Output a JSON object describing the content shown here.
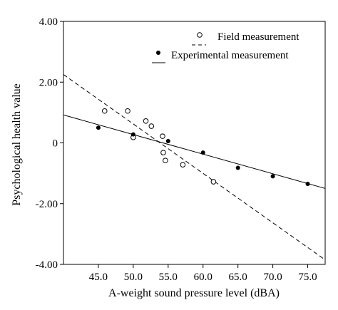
{
  "chart_data": {
    "type": "scatter",
    "xlabel": "A-weight sound pressure level (dBA)",
    "ylabel": "Psychological health value",
    "xlim": [
      40.0,
      77.5
    ],
    "ylim": [
      -4.0,
      4.0
    ],
    "x_ticks": [
      45,
      50,
      55,
      60,
      65,
      70,
      75
    ],
    "x_tick_labels": [
      "45.0",
      "50.0",
      "55.0",
      "60.0",
      "65.0",
      "70.0",
      "75.0"
    ],
    "y_ticks": [
      4,
      2,
      0,
      -2,
      -4
    ],
    "y_tick_labels": [
      "4.00",
      "2.00",
      "0",
      "-2.00",
      "-4.00"
    ],
    "grid": false,
    "legend_position": "top-right",
    "legend": [
      {
        "marker_label": "Field measurement",
        "line_label": ""
      },
      {
        "marker_label": "Experimental measurement",
        "line_label": ""
      }
    ],
    "series": [
      {
        "marker": "open-circle",
        "x": [
          45.9,
          49.2,
          50.0,
          51.8,
          52.6,
          54.2,
          54.3,
          54.6,
          57.1,
          61.5
        ],
        "y": [
          1.05,
          1.05,
          0.18,
          0.72,
          0.55,
          0.22,
          -0.32,
          -0.58,
          -0.72,
          -1.28
        ],
        "fit": {
          "style": "dashed",
          "x": [
            40.0,
            77.5
          ],
          "y": [
            2.25,
            -3.85
          ]
        }
      },
      {
        "marker": "filled-circle",
        "x": [
          45.0,
          50.0,
          55.0,
          60.0,
          65.0,
          70.0,
          75.0
        ],
        "y": [
          0.5,
          0.28,
          0.06,
          -0.32,
          -0.82,
          -1.1,
          -1.35
        ],
        "fit": {
          "style": "solid",
          "x": [
            40.0,
            77.5
          ],
          "y": [
            0.92,
            -1.5
          ]
        }
      }
    ]
  }
}
